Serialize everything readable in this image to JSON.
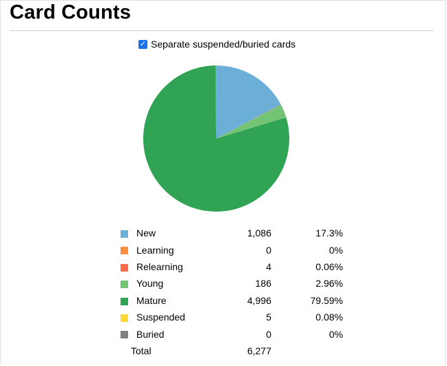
{
  "page": {
    "title": "Card Counts"
  },
  "toggle": {
    "label": "Separate suspended/buried cards",
    "checked": true
  },
  "chart_data": {
    "type": "pie",
    "categories": [
      "New",
      "Learning",
      "Relearning",
      "Young",
      "Mature",
      "Suspended",
      "Buried"
    ],
    "values": [
      1086,
      0,
      4,
      186,
      4996,
      5,
      0
    ],
    "percents": [
      "17.3%",
      "0%",
      "0.06%",
      "2.96%",
      "79.59%",
      "0.08%",
      "0%"
    ],
    "counts_display": [
      "1,086",
      "0",
      "4",
      "186",
      "4,996",
      "5",
      "0"
    ],
    "colors": [
      "#6baed6",
      "#fd8d3c",
      "#fb6a4a",
      "#74c476",
      "#31a354",
      "#fdd835",
      "#7f7f7f"
    ],
    "total_label": "Total",
    "total_display": "6,277",
    "total": 6277
  }
}
